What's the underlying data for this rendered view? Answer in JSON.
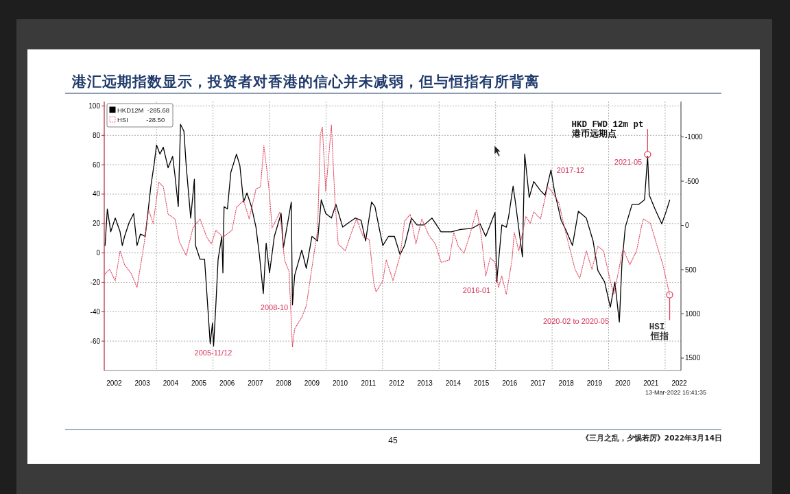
{
  "chart_data": {
    "type": "line",
    "title": "港汇远期指数显示，投资者对香港的信心并未减弱，但与恒指有所背离",
    "xlim": [
      2002.15,
      2022.56
    ],
    "xticks": [
      {
        "value": 2002.5,
        "label": "2002"
      },
      {
        "value": 2003.5,
        "label": "2003"
      },
      {
        "value": 2004.5,
        "label": "2004"
      },
      {
        "value": 2005.5,
        "label": "2005"
      },
      {
        "value": 2006.5,
        "label": "2006"
      },
      {
        "value": 2007.5,
        "label": "2007"
      },
      {
        "value": 2008.5,
        "label": "2008"
      },
      {
        "value": 2009.5,
        "label": "2009"
      },
      {
        "value": 2010.5,
        "label": "2010"
      },
      {
        "value": 2011.5,
        "label": "2011"
      },
      {
        "value": 2012.5,
        "label": "2012"
      },
      {
        "value": 2013.5,
        "label": "2013"
      },
      {
        "value": 2014.5,
        "label": "2014"
      },
      {
        "value": 2015.5,
        "label": "2015"
      },
      {
        "value": 2016.5,
        "label": "2016"
      },
      {
        "value": 2017.5,
        "label": "2017"
      },
      {
        "value": 2018.5,
        "label": "2018"
      },
      {
        "value": 2019.5,
        "label": "2019"
      },
      {
        "value": 2020.5,
        "label": "2020"
      },
      {
        "value": 2021.5,
        "label": "2021"
      },
      {
        "value": 2022.5,
        "label": "2022"
      },
      {
        "value": 2004,
        "label": null
      },
      {
        "value": 2006,
        "label": null
      },
      {
        "value": 2008,
        "label": null
      },
      {
        "value": 2010,
        "label": null
      },
      {
        "value": 2012,
        "label": null
      },
      {
        "value": 2014,
        "label": null
      },
      {
        "value": 2016,
        "label": null
      },
      {
        "value": 2018,
        "label": null
      },
      {
        "value": 2020,
        "label": null
      },
      {
        "value": 2022,
        "label": null
      }
    ],
    "ylim": [
      -80,
      103
    ],
    "yticks": [
      -60,
      -40,
      -20,
      0,
      20,
      40,
      60,
      80,
      100
    ],
    "y2lim": [
      1640,
      -1400
    ],
    "y2ticks": [
      -1000,
      -500,
      0,
      500,
      1000,
      1500
    ],
    "grid": true,
    "legend": "top left",
    "series": [
      {
        "name": "HKD12M  -285.68",
        "color": "#000000",
        "axis": "y2",
        "line_style": "solid",
        "x": [
          2002.18,
          2002.26,
          2002.38,
          2002.54,
          2002.71,
          2002.79,
          2002.87,
          2003.03,
          2003.19,
          2003.31,
          2003.43,
          2003.6,
          2003.72,
          2003.8,
          2003.92,
          2004.0,
          2004.12,
          2004.24,
          2004.41,
          2004.57,
          2004.65,
          2004.77,
          2004.85,
          2004.97,
          2005.05,
          2005.21,
          2005.34,
          2005.38,
          2005.54,
          2005.7,
          2005.82,
          2005.9,
          2005.98,
          2006.02,
          2006.1,
          2006.18,
          2006.31,
          2006.35,
          2006.39,
          2006.51,
          2006.63,
          2006.83,
          2006.95,
          2007.08,
          2007.2,
          2007.36,
          2007.52,
          2007.64,
          2007.78,
          2007.88,
          2008.0,
          2008.17,
          2008.41,
          2008.49,
          2008.77,
          2008.81,
          2008.89,
          2009.14,
          2009.3,
          2009.5,
          2009.7,
          2009.83,
          2009.99,
          2010.19,
          2010.35,
          2010.59,
          2010.8,
          2011.04,
          2011.24,
          2011.4,
          2011.61,
          2011.73,
          2011.89,
          2012.01,
          2012.21,
          2012.42,
          2012.62,
          2012.78,
          2013.02,
          2013.22,
          2013.47,
          2013.75,
          2014.07,
          2014.44,
          2014.76,
          2015.17,
          2015.45,
          2015.65,
          2015.98,
          2016.04,
          2016.22,
          2016.38,
          2016.46,
          2016.62,
          2016.7,
          2016.95,
          2017.03,
          2017.19,
          2017.35,
          2017.59,
          2017.75,
          2017.96,
          2018.08,
          2018.32,
          2018.48,
          2018.72,
          2018.93,
          2019.21,
          2019.45,
          2019.62,
          2019.86,
          2020.06,
          2020.22,
          2020.38,
          2020.47,
          2020.59,
          2020.83,
          2021.07,
          2021.27,
          2021.38,
          2021.44,
          2021.64,
          2021.88,
          2022.04,
          2022.16
        ],
        "values": [
          227,
          -186,
          72,
          -83,
          72,
          227,
          124,
          -31,
          -134,
          227,
          98,
          124,
          -212,
          -444,
          -703,
          -909,
          -806,
          -884,
          -651,
          -780,
          -574,
          -212,
          -1142,
          -1064,
          -677,
          -83,
          -522,
          227,
          382,
          382,
          950,
          1338,
          1105,
          1364,
          899,
          382,
          124,
          537,
          -212,
          -186,
          -599,
          -806,
          -677,
          -264,
          -367,
          -212,
          20,
          330,
          770,
          201,
          537,
          124,
          -134,
          253,
          -264,
          899,
          563,
          279,
          485,
          124,
          176,
          -289,
          -134,
          -83,
          -238,
          20,
          -31,
          -83,
          -57,
          176,
          -264,
          -212,
          46,
          227,
          124,
          124,
          330,
          227,
          -83,
          -5,
          -5,
          -83,
          72,
          72,
          46,
          33,
          -18,
          124,
          -147,
          640,
          -5,
          20,
          -96,
          -444,
          -264,
          356,
          -806,
          -315,
          -496,
          -393,
          -341,
          -625,
          -393,
          -57,
          46,
          227,
          -160,
          -83,
          176,
          511,
          640,
          925,
          640,
          1093,
          434,
          20,
          -238,
          -238,
          -289,
          -780,
          -341,
          -186,
          -18,
          -160,
          -285.68
        ]
      },
      {
        "name": "HSI          -28.50",
        "color": "#e0405a",
        "line_style": "dotted",
        "x": [
          2002.18,
          2002.34,
          2002.54,
          2002.71,
          2002.87,
          2003.11,
          2003.31,
          2003.56,
          2003.72,
          2003.88,
          2004.08,
          2004.24,
          2004.41,
          2004.65,
          2004.81,
          2005.05,
          2005.29,
          2005.54,
          2005.78,
          2005.94,
          2006.1,
          2006.35,
          2006.67,
          2006.83,
          2007.08,
          2007.28,
          2007.52,
          2007.68,
          2007.8,
          2007.93,
          2008.01,
          2008.09,
          2008.37,
          2008.53,
          2008.69,
          2008.81,
          2008.89,
          2009.14,
          2009.3,
          2009.54,
          2009.7,
          2009.8,
          2009.87,
          2009.99,
          2010.19,
          2010.31,
          2010.43,
          2010.68,
          2010.84,
          2011.08,
          2011.32,
          2011.53,
          2011.69,
          2011.77,
          2012.01,
          2012.13,
          2012.37,
          2012.62,
          2012.78,
          2012.98,
          2013.18,
          2013.39,
          2013.63,
          2013.87,
          2014.07,
          2014.36,
          2014.52,
          2014.68,
          2014.88,
          2015.09,
          2015.33,
          2015.49,
          2015.65,
          2015.81,
          2015.98,
          2016.1,
          2016.22,
          2016.38,
          2016.58,
          2016.66,
          2016.82,
          2016.99,
          2017.07,
          2017.23,
          2017.35,
          2017.59,
          2017.84,
          2017.99,
          2018.24,
          2018.48,
          2018.81,
          2018.98,
          2019.21,
          2019.41,
          2019.62,
          2019.82,
          2020.02,
          2020.18,
          2020.3,
          2020.51,
          2020.75,
          2020.99,
          2021.15,
          2021.23,
          2021.48,
          2021.72,
          2021.92,
          2022.16
        ],
        "values": [
          -14.2,
          -11.1,
          -18.9,
          1.4,
          -8,
          -14.2,
          -23.5,
          6.1,
          29.4,
          20.1,
          48.1,
          45,
          26.3,
          23.2,
          7.6,
          -1.7,
          17,
          23.2,
          10.7,
          6.1,
          15.4,
          10.7,
          15.4,
          31,
          35.7,
          23.2,
          43.5,
          45,
          73,
          52.8,
          37.2,
          17,
          27.9,
          -4.8,
          -12.6,
          -64,
          -51.6,
          -43.8,
          -36,
          -4.8,
          15.4,
          80.8,
          85.5,
          41.9,
          87.1,
          37.2,
          6.1,
          1.4,
          10.7,
          23.2,
          10.7,
          9.2,
          -20.4,
          -26.6,
          -18.9,
          -4.8,
          -18.9,
          -1.7,
          21.6,
          26.3,
          6.1,
          23.2,
          12.3,
          6.1,
          -6.4,
          -4.8,
          13.9,
          4.5,
          -0.2,
          12.3,
          29.4,
          12.3,
          -15.7,
          -3.3,
          -6.4,
          -23.5,
          -15.7,
          -28.2,
          -4.8,
          13.9,
          1.4,
          17,
          24.8,
          20.1,
          27.9,
          23.2,
          45,
          41.9,
          34.1,
          13.9,
          -11.1,
          -17.3,
          1.4,
          -11.1,
          4.5,
          1.4,
          -15.7,
          -28.2,
          -17.3,
          2.9,
          -8,
          1.4,
          17,
          23.2,
          20.1,
          4.5,
          -8,
          -28.5
        ]
      },
      {
        "type": "scatter",
        "color": "#e0405a",
        "marker": "circle",
        "x": [
          2021.38,
          2022.16
        ],
        "values": [
          67,
          -28.5
        ]
      }
    ],
    "annotations": [
      "2005-11/12",
      "2008-10",
      "2016-01",
      "2017-12",
      "2021-05",
      "2020-02 to 2020-05",
      "HKD FWD 12m pt",
      "港币远期点",
      "HSI",
      "恒指",
      "13-Mar-2022 16:41:35",
      "45",
      "《三月之乱，夕惕若厉》2022年3月14日"
    ]
  }
}
